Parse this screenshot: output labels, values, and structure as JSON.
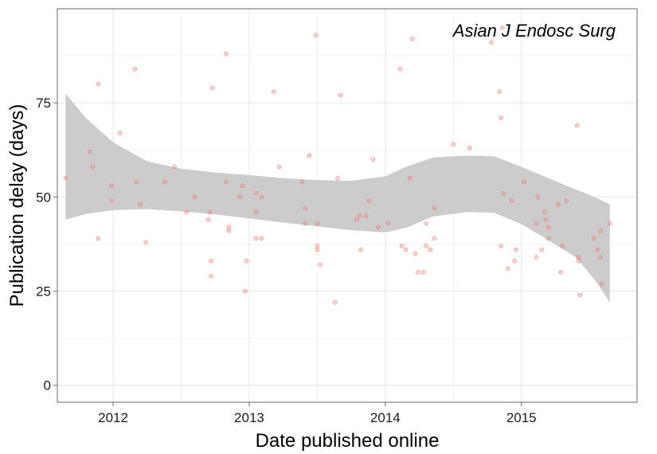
{
  "chart_data": {
    "type": "scatter",
    "title": "",
    "panel_label": "Asian J Endosc Surg",
    "xlabel": "Date published online",
    "ylabel": "Publication delay (days)",
    "xlim": [
      2011.59,
      2015.85
    ],
    "ylim": [
      -4.5,
      100
    ],
    "x_ticks": [
      {
        "value": 2012,
        "label": "2012"
      },
      {
        "value": 2013,
        "label": "2013"
      },
      {
        "value": 2014,
        "label": "2014"
      },
      {
        "value": 2015,
        "label": "2015"
      }
    ],
    "y_ticks": [
      {
        "value": 0,
        "label": "0"
      },
      {
        "value": 25,
        "label": "25"
      },
      {
        "value": 50,
        "label": "50"
      },
      {
        "value": 75,
        "label": "75"
      }
    ],
    "grid": true,
    "point_color": "#f8766d",
    "band_color": "#cccccc",
    "points": [
      {
        "x": 2011.65,
        "y": 55
      },
      {
        "x": 2011.83,
        "y": 62
      },
      {
        "x": 2011.85,
        "y": 58
      },
      {
        "x": 2011.89,
        "y": 80
      },
      {
        "x": 2011.89,
        "y": 39
      },
      {
        "x": 2011.99,
        "y": 53
      },
      {
        "x": 2011.99,
        "y": 49
      },
      {
        "x": 2012.05,
        "y": 67
      },
      {
        "x": 2012.16,
        "y": 84
      },
      {
        "x": 2012.17,
        "y": 54
      },
      {
        "x": 2012.2,
        "y": 48
      },
      {
        "x": 2012.24,
        "y": 38
      },
      {
        "x": 2012.38,
        "y": 54
      },
      {
        "x": 2012.45,
        "y": 58
      },
      {
        "x": 2012.54,
        "y": 46
      },
      {
        "x": 2012.6,
        "y": 50
      },
      {
        "x": 2012.7,
        "y": 44
      },
      {
        "x": 2012.71,
        "y": 46
      },
      {
        "x": 2012.72,
        "y": 33
      },
      {
        "x": 2012.72,
        "y": 29
      },
      {
        "x": 2012.73,
        "y": 79
      },
      {
        "x": 2012.83,
        "y": 88
      },
      {
        "x": 2012.83,
        "y": 54
      },
      {
        "x": 2012.85,
        "y": 42
      },
      {
        "x": 2012.85,
        "y": 41
      },
      {
        "x": 2012.93,
        "y": 50
      },
      {
        "x": 2012.95,
        "y": 53
      },
      {
        "x": 2012.97,
        "y": 25
      },
      {
        "x": 2012.98,
        "y": 33
      },
      {
        "x": 2013.05,
        "y": 51
      },
      {
        "x": 2013.05,
        "y": 46
      },
      {
        "x": 2013.05,
        "y": 39
      },
      {
        "x": 2013.09,
        "y": 50
      },
      {
        "x": 2013.09,
        "y": 39
      },
      {
        "x": 2013.18,
        "y": 78
      },
      {
        "x": 2013.22,
        "y": 58
      },
      {
        "x": 2013.39,
        "y": 54
      },
      {
        "x": 2013.41,
        "y": 47
      },
      {
        "x": 2013.41,
        "y": 43
      },
      {
        "x": 2013.44,
        "y": 61
      },
      {
        "x": 2013.49,
        "y": 93
      },
      {
        "x": 2013.5,
        "y": 43
      },
      {
        "x": 2013.5,
        "y": 37
      },
      {
        "x": 2013.5,
        "y": 36
      },
      {
        "x": 2013.52,
        "y": 32
      },
      {
        "x": 2013.63,
        "y": 22
      },
      {
        "x": 2013.65,
        "y": 55
      },
      {
        "x": 2013.67,
        "y": 77
      },
      {
        "x": 2013.79,
        "y": 44
      },
      {
        "x": 2013.81,
        "y": 45
      },
      {
        "x": 2013.82,
        "y": 36
      },
      {
        "x": 2013.86,
        "y": 45
      },
      {
        "x": 2013.88,
        "y": 49
      },
      {
        "x": 2013.91,
        "y": 60
      },
      {
        "x": 2013.95,
        "y": 42
      },
      {
        "x": 2014.02,
        "y": 43
      },
      {
        "x": 2014.11,
        "y": 84
      },
      {
        "x": 2014.12,
        "y": 37
      },
      {
        "x": 2014.15,
        "y": 36
      },
      {
        "x": 2014.18,
        "y": 55
      },
      {
        "x": 2014.2,
        "y": 92
      },
      {
        "x": 2014.22,
        "y": 35
      },
      {
        "x": 2014.24,
        "y": 30
      },
      {
        "x": 2014.28,
        "y": 30
      },
      {
        "x": 2014.3,
        "y": 43
      },
      {
        "x": 2014.3,
        "y": 37
      },
      {
        "x": 2014.33,
        "y": 36
      },
      {
        "x": 2014.36,
        "y": 47
      },
      {
        "x": 2014.36,
        "y": 39
      },
      {
        "x": 2014.5,
        "y": 64
      },
      {
        "x": 2014.62,
        "y": 63
      },
      {
        "x": 2014.78,
        "y": 91
      },
      {
        "x": 2014.84,
        "y": 78
      },
      {
        "x": 2014.85,
        "y": 71
      },
      {
        "x": 2014.85,
        "y": 37
      },
      {
        "x": 2014.86,
        "y": 95
      },
      {
        "x": 2014.87,
        "y": 51
      },
      {
        "x": 2014.9,
        "y": 31
      },
      {
        "x": 2014.93,
        "y": 49
      },
      {
        "x": 2014.95,
        "y": 33
      },
      {
        "x": 2014.96,
        "y": 36
      },
      {
        "x": 2015.02,
        "y": 54
      },
      {
        "x": 2015.11,
        "y": 43
      },
      {
        "x": 2015.11,
        "y": 34
      },
      {
        "x": 2015.12,
        "y": 50
      },
      {
        "x": 2015.15,
        "y": 36
      },
      {
        "x": 2015.17,
        "y": 46
      },
      {
        "x": 2015.18,
        "y": 44
      },
      {
        "x": 2015.2,
        "y": 42
      },
      {
        "x": 2015.2,
        "y": 39
      },
      {
        "x": 2015.27,
        "y": 48
      },
      {
        "x": 2015.29,
        "y": 30
      },
      {
        "x": 2015.3,
        "y": 37
      },
      {
        "x": 2015.33,
        "y": 49
      },
      {
        "x": 2015.41,
        "y": 69
      },
      {
        "x": 2015.42,
        "y": 34
      },
      {
        "x": 2015.42,
        "y": 33
      },
      {
        "x": 2015.43,
        "y": 24
      },
      {
        "x": 2015.53,
        "y": 39
      },
      {
        "x": 2015.56,
        "y": 36
      },
      {
        "x": 2015.58,
        "y": 41
      },
      {
        "x": 2015.58,
        "y": 34
      },
      {
        "x": 2015.59,
        "y": 27
      },
      {
        "x": 2015.65,
        "y": 43
      }
    ],
    "smooth_band": {
      "x": [
        2011.65,
        2011.8,
        2012.0,
        2012.25,
        2012.5,
        2012.75,
        2013.0,
        2013.25,
        2013.5,
        2013.75,
        2014.0,
        2014.15,
        2014.35,
        2014.6,
        2014.8,
        2015.0,
        2015.2,
        2015.4,
        2015.55,
        2015.65
      ],
      "upper": [
        77.5,
        71.0,
        64.5,
        59.5,
        57.5,
        56.5,
        55.8,
        55.0,
        54.5,
        54.3,
        55.5,
        58.0,
        60.5,
        61.0,
        60.8,
        58.0,
        55.0,
        52.0,
        49.8,
        48.0
      ],
      "lower": [
        44.0,
        45.5,
        46.5,
        46.8,
        46.2,
        45.4,
        44.3,
        43.2,
        42.2,
        41.2,
        40.6,
        41.8,
        44.8,
        46.0,
        45.8,
        42.8,
        38.5,
        34.0,
        27.5,
        22.0
      ]
    }
  }
}
